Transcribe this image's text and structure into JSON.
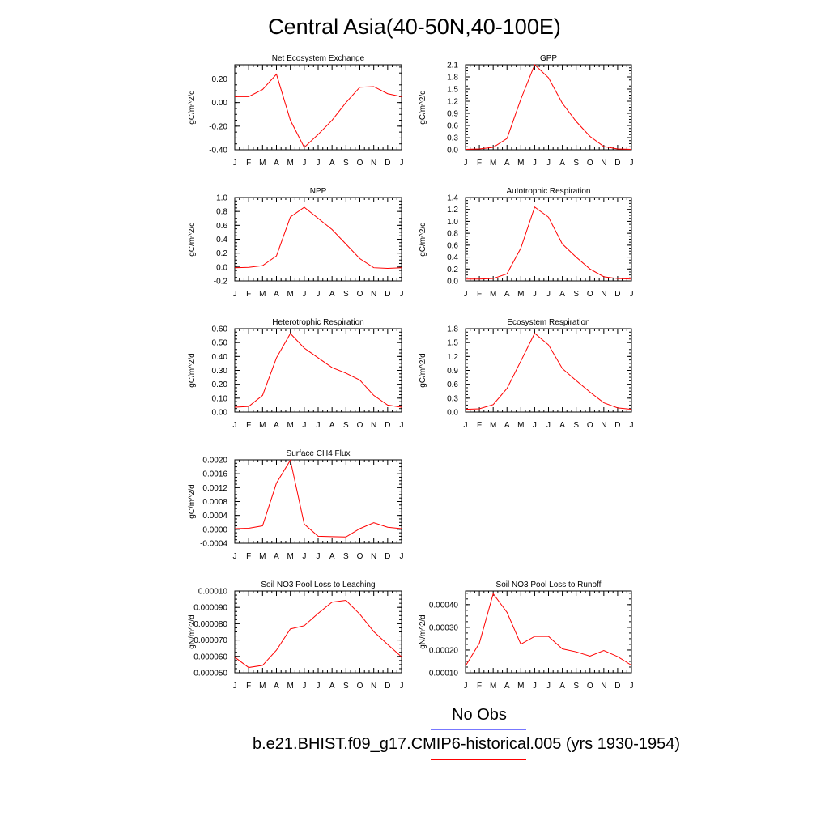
{
  "page_title": "Central Asia(40-50N,40-100E)",
  "legend": [
    {
      "label": "No Obs",
      "color": "#7777ff"
    },
    {
      "label": "b.e21.BHIST.f09_g17.CMIP6-historical.005 (yrs 1930-1954)",
      "color": "#ff0000"
    }
  ],
  "series_color": "#ff0000",
  "chart_data": [
    {
      "type": "line",
      "title": "Net Ecosystem Exchange",
      "ylabel": "gC/m^2/d",
      "x": [
        "J",
        "F",
        "M",
        "A",
        "M",
        "J",
        "J",
        "A",
        "S",
        "O",
        "N",
        "D",
        "J"
      ],
      "values": [
        0.05,
        0.05,
        0.11,
        0.24,
        -0.15,
        -0.38,
        -0.27,
        -0.15,
        0.0,
        0.13,
        0.135,
        0.075,
        0.05
      ],
      "ylim": [
        -0.4,
        0.32
      ],
      "yticks": [
        -0.4,
        -0.2,
        0.0,
        0.2
      ],
      "yticklabels": [
        "-0.40",
        "-0.20",
        "0.00",
        "0.20"
      ]
    },
    {
      "type": "line",
      "title": "GPP",
      "ylabel": "gC/m^2/d",
      "x": [
        "J",
        "F",
        "M",
        "A",
        "M",
        "J",
        "J",
        "A",
        "S",
        "O",
        "N",
        "D",
        "J"
      ],
      "values": [
        0.01,
        0.02,
        0.06,
        0.28,
        1.25,
        2.1,
        1.78,
        1.15,
        0.7,
        0.33,
        0.08,
        0.02,
        0.01
      ],
      "ylim": [
        0.0,
        2.1
      ],
      "yticks": [
        0.0,
        0.3,
        0.6,
        0.9,
        1.2,
        1.5,
        1.8,
        2.1
      ],
      "yticklabels": [
        "0.0",
        "0.3",
        "0.6",
        "0.9",
        "1.2",
        "1.5",
        "1.8",
        "2.1"
      ]
    },
    {
      "type": "line",
      "title": "NPP",
      "ylabel": "gC/m^2/d",
      "x": [
        "J",
        "F",
        "M",
        "A",
        "M",
        "J",
        "J",
        "A",
        "S",
        "O",
        "N",
        "D",
        "J"
      ],
      "values": [
        -0.01,
        -0.005,
        0.02,
        0.16,
        0.72,
        0.86,
        0.7,
        0.54,
        0.33,
        0.12,
        -0.01,
        -0.02,
        -0.01
      ],
      "ylim": [
        -0.2,
        1.0
      ],
      "yticks": [
        -0.2,
        0.0,
        0.2,
        0.4,
        0.6,
        0.8,
        1.0
      ],
      "yticklabels": [
        "-0.2",
        "0.0",
        "0.2",
        "0.4",
        "0.6",
        "0.8",
        "1.0"
      ]
    },
    {
      "type": "line",
      "title": "Autotrophic Respiration",
      "ylabel": "gC/m^2/d",
      "x": [
        "J",
        "F",
        "M",
        "A",
        "M",
        "J",
        "J",
        "A",
        "S",
        "O",
        "N",
        "D",
        "J"
      ],
      "values": [
        0.03,
        0.03,
        0.04,
        0.12,
        0.55,
        1.24,
        1.07,
        0.62,
        0.4,
        0.2,
        0.07,
        0.04,
        0.03
      ],
      "ylim": [
        0.0,
        1.4
      ],
      "yticks": [
        0.0,
        0.2,
        0.4,
        0.6,
        0.8,
        1.0,
        1.2,
        1.4
      ],
      "yticklabels": [
        "0.0",
        "0.2",
        "0.4",
        "0.6",
        "0.8",
        "1.0",
        "1.2",
        "1.4"
      ]
    },
    {
      "type": "line",
      "title": "Heterotrophic Respiration",
      "ylabel": "gC/m^2/d",
      "x": [
        "J",
        "F",
        "M",
        "A",
        "M",
        "J",
        "J",
        "A",
        "S",
        "O",
        "N",
        "D",
        "J"
      ],
      "values": [
        0.035,
        0.04,
        0.12,
        0.39,
        0.565,
        0.46,
        0.39,
        0.32,
        0.28,
        0.23,
        0.12,
        0.05,
        0.035
      ],
      "ylim": [
        0.0,
        0.6
      ],
      "yticks": [
        0.0,
        0.1,
        0.2,
        0.3,
        0.4,
        0.5,
        0.6
      ],
      "yticklabels": [
        "0.00",
        "0.10",
        "0.20",
        "0.30",
        "0.40",
        "0.50",
        "0.60"
      ]
    },
    {
      "type": "line",
      "title": "Ecosystem Respiration",
      "ylabel": "gC/m^2/d",
      "x": [
        "J",
        "F",
        "M",
        "A",
        "M",
        "J",
        "J",
        "A",
        "S",
        "O",
        "N",
        "D",
        "J"
      ],
      "values": [
        0.06,
        0.07,
        0.16,
        0.51,
        1.1,
        1.7,
        1.45,
        0.94,
        0.68,
        0.43,
        0.2,
        0.09,
        0.06
      ],
      "ylim": [
        0.0,
        1.8
      ],
      "yticks": [
        0.0,
        0.3,
        0.6,
        0.9,
        1.2,
        1.5,
        1.8
      ],
      "yticklabels": [
        "0.0",
        "0.3",
        "0.6",
        "0.9",
        "1.2",
        "1.5",
        "1.8"
      ]
    },
    {
      "type": "line",
      "title": "Surface CH4 Flux",
      "ylabel": "gC/m^2/d",
      "x": [
        "J",
        "F",
        "M",
        "A",
        "M",
        "J",
        "J",
        "A",
        "S",
        "O",
        "N",
        "D",
        "J"
      ],
      "values": [
        2e-05,
        3e-05,
        0.0001,
        0.00133,
        0.00199,
        0.00015,
        -0.0002,
        -0.00021,
        -0.00022,
        2e-05,
        0.00019,
        6e-05,
        2e-05
      ],
      "ylim": [
        -0.0004,
        0.002
      ],
      "yticks": [
        -0.0004,
        0.0,
        0.0004,
        0.0008,
        0.0012,
        0.0016,
        0.002
      ],
      "yticklabels": [
        "-0.0004",
        "0.0000",
        "0.0004",
        "0.0008",
        "0.0012",
        "0.0016",
        "0.0020"
      ]
    },
    {
      "type": "line",
      "title": "Soil NO3 Pool Loss to Leaching",
      "ylabel": "gN/m^2/d",
      "x": [
        "J",
        "F",
        "M",
        "A",
        "M",
        "J",
        "J",
        "A",
        "S",
        "O",
        "N",
        "D",
        "J"
      ],
      "values": [
        5.95e-05,
        5.32e-05,
        5.45e-05,
        6.38e-05,
        7.68e-05,
        7.88e-05,
        8.63e-05,
        9.32e-05,
        9.43e-05,
        8.58e-05,
        7.52e-05,
        6.73e-05,
        5.97e-05
      ],
      "ylim": [
        5e-05,
        0.0001
      ],
      "yticks": [
        5e-05,
        6e-05,
        7e-05,
        8e-05,
        9e-05,
        0.0001
      ],
      "yticklabels": [
        "0.000050",
        "0.000060",
        "0.000070",
        "0.000080",
        "0.000090",
        "0.00010"
      ]
    },
    {
      "type": "line",
      "title": "Soil NO3 Pool Loss to Runoff",
      "ylabel": "gN/m^2/d",
      "x": [
        "J",
        "F",
        "M",
        "A",
        "M",
        "J",
        "J",
        "A",
        "S",
        "O",
        "N",
        "D",
        "J"
      ],
      "values": [
        0.00013,
        0.00023,
        0.000448,
        0.000366,
        0.000226,
        0.00026,
        0.00026,
        0.000205,
        0.000192,
        0.000173,
        0.000198,
        0.000171,
        0.000133
      ],
      "ylim": [
        0.0001,
        0.00046
      ],
      "yticks": [
        0.0001,
        0.0002,
        0.0003,
        0.0004
      ],
      "yticklabels": [
        "0.00010",
        "0.00020",
        "0.00030",
        "0.00040"
      ]
    }
  ]
}
